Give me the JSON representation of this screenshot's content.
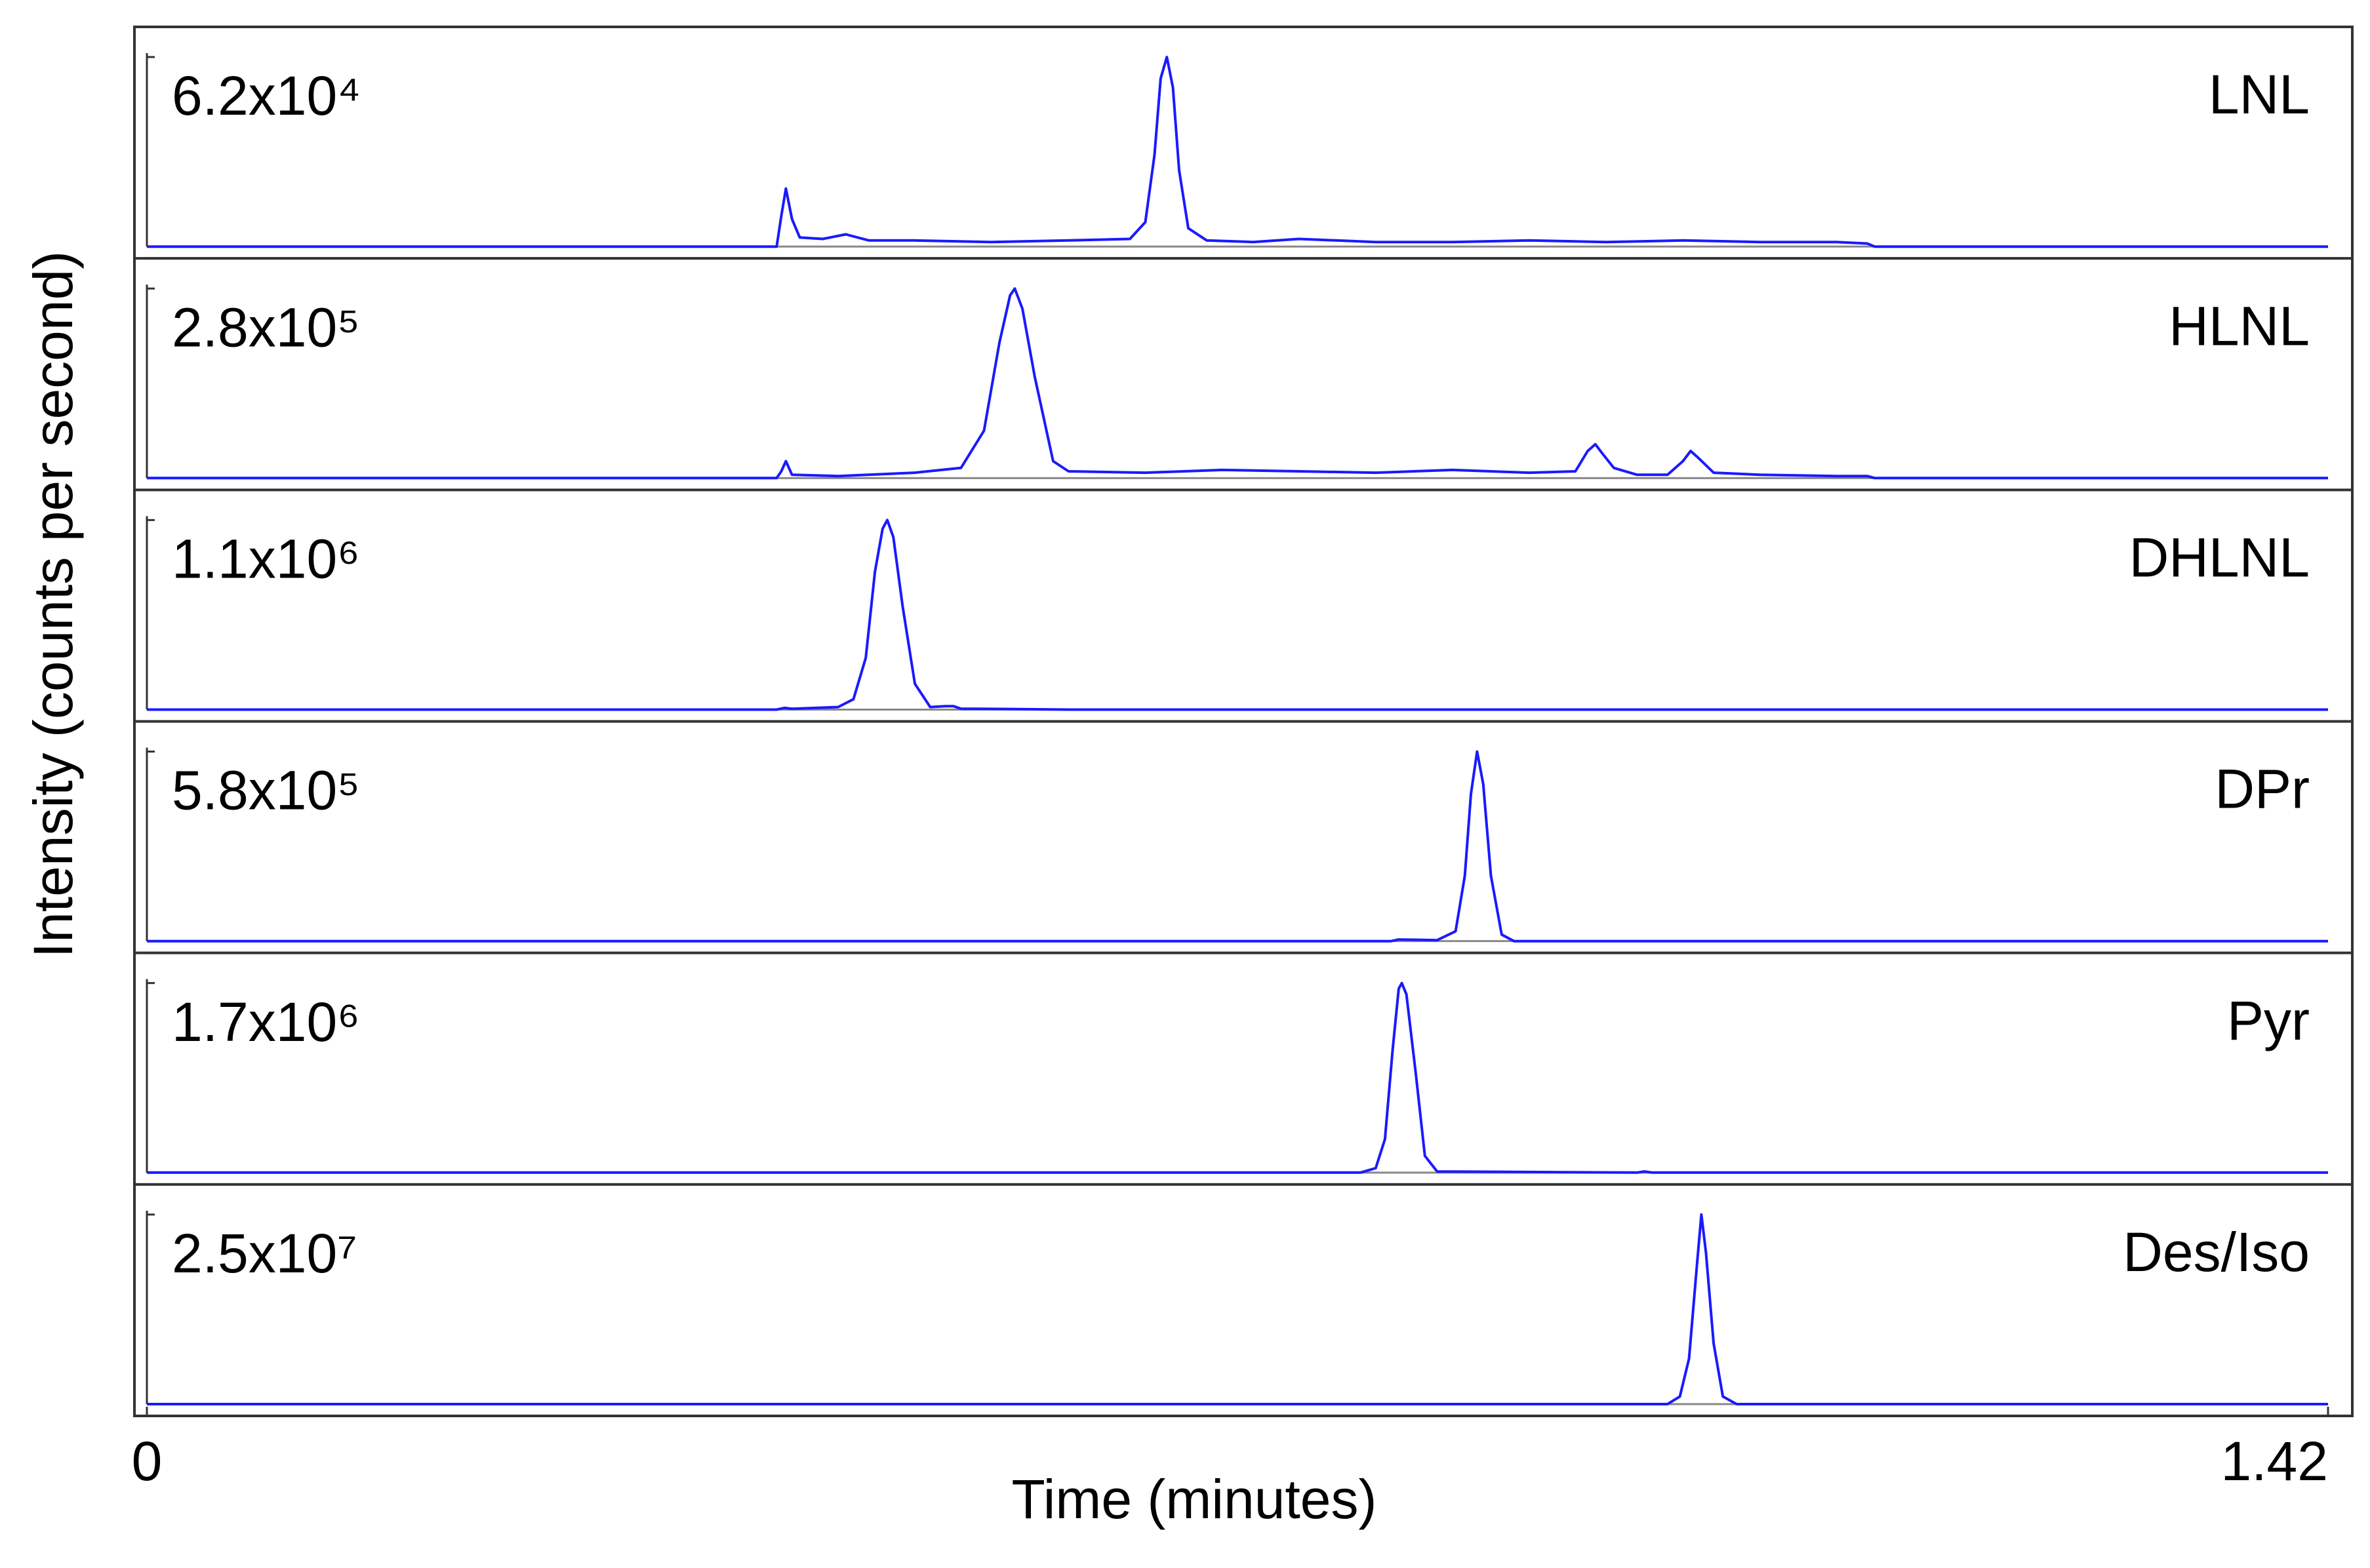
{
  "chart_data": [
    {
      "type": "line",
      "title": "LNL",
      "ylabel": "Intensity (counts per second)",
      "color": "#1a1aff",
      "xlim": [
        0,
        1.42
      ],
      "ylim": [
        0,
        62000
      ],
      "yticks": [
        {
          "value": 62000,
          "label": "6.2x10⁴"
        }
      ],
      "x": [
        0,
        0.41,
        0.413,
        0.416,
        0.42,
        0.425,
        0.44,
        0.455,
        0.47,
        0.5,
        0.55,
        0.6,
        0.64,
        0.65,
        0.656,
        0.66,
        0.664,
        0.668,
        0.672,
        0.678,
        0.69,
        0.72,
        0.75,
        0.8,
        0.85,
        0.9,
        0.95,
        1.0,
        1.05,
        1.1,
        1.12,
        1.125,
        1.42
      ],
      "values": [
        0,
        0,
        10000,
        19000,
        9000,
        3000,
        2500,
        4000,
        2000,
        2000,
        1500,
        2000,
        2500,
        8000,
        30000,
        55000,
        62000,
        52000,
        25000,
        6000,
        2000,
        1500,
        2500,
        1500,
        1500,
        2000,
        1500,
        2000,
        1500,
        1500,
        1000,
        0,
        0
      ]
    },
    {
      "type": "line",
      "title": "HLNL",
      "color": "#1a1aff",
      "xlim": [
        0,
        1.42
      ],
      "ylim": [
        0,
        280000
      ],
      "yticks": [
        {
          "value": 280000,
          "label": "2.8x10⁵"
        }
      ],
      "x": [
        0,
        0.41,
        0.413,
        0.416,
        0.42,
        0.45,
        0.5,
        0.53,
        0.545,
        0.555,
        0.562,
        0.565,
        0.57,
        0.578,
        0.59,
        0.6,
        0.65,
        0.7,
        0.75,
        0.8,
        0.85,
        0.9,
        0.93,
        0.938,
        0.943,
        0.948,
        0.955,
        0.97,
        0.99,
        1.0,
        1.005,
        1.01,
        1.02,
        1.05,
        1.1,
        1.12,
        1.125,
        1.42
      ],
      "values": [
        0,
        0,
        10000,
        25000,
        5000,
        3000,
        8000,
        15000,
        70000,
        200000,
        270000,
        280000,
        250000,
        150000,
        25000,
        10000,
        8000,
        12000,
        10000,
        8000,
        12000,
        8000,
        10000,
        40000,
        50000,
        35000,
        15000,
        5000,
        5000,
        25000,
        40000,
        30000,
        8000,
        5000,
        3000,
        3000,
        0,
        0
      ]
    },
    {
      "type": "line",
      "title": "DHLNL",
      "color": "#1a1aff",
      "xlim": [
        0,
        1.42
      ],
      "ylim": [
        0,
        1100000
      ],
      "yticks": [
        {
          "value": 1100000,
          "label": "1.1x10⁶"
        }
      ],
      "x": [
        0,
        0.41,
        0.415,
        0.42,
        0.45,
        0.46,
        0.468,
        0.474,
        0.479,
        0.482,
        0.486,
        0.492,
        0.5,
        0.51,
        0.52,
        0.525,
        0.53,
        0.54,
        0.6,
        1.42
      ],
      "values": [
        0,
        0,
        10000,
        5000,
        15000,
        60000,
        300000,
        800000,
        1050000,
        1100000,
        1000000,
        600000,
        150000,
        15000,
        20000,
        20000,
        5000,
        5000,
        0,
        0
      ]
    },
    {
      "type": "line",
      "title": "DPr",
      "color": "#1a1aff",
      "xlim": [
        0,
        1.42
      ],
      "ylim": [
        0,
        580000
      ],
      "yticks": [
        {
          "value": 580000,
          "label": "5.8x10⁵"
        }
      ],
      "x": [
        0,
        0.81,
        0.815,
        0.84,
        0.852,
        0.858,
        0.862,
        0.866,
        0.87,
        0.875,
        0.882,
        0.89,
        1.42
      ],
      "values": [
        0,
        0,
        5000,
        3000,
        30000,
        200000,
        450000,
        580000,
        480000,
        200000,
        20000,
        0,
        0
      ]
    },
    {
      "type": "line",
      "title": "Pyr",
      "color": "#1a1aff",
      "xlim": [
        0,
        1.42
      ],
      "ylim": [
        0,
        1700000
      ],
      "yticks": [
        {
          "value": 1700000,
          "label": "1.7x10⁶"
        }
      ],
      "x": [
        0,
        0.79,
        0.8,
        0.806,
        0.811,
        0.815,
        0.817,
        0.82,
        0.826,
        0.832,
        0.84,
        0.97,
        0.975,
        0.98,
        1.42
      ],
      "values": [
        0,
        0,
        40000,
        300000,
        1100000,
        1650000,
        1700000,
        1600000,
        900000,
        150000,
        10000,
        0,
        10000,
        0,
        0
      ]
    },
    {
      "type": "line",
      "title": "Des/Iso",
      "xlabel": "Time (minutes)",
      "color": "#1a1aff",
      "xlim": [
        0,
        1.42
      ],
      "xticks": [
        0,
        1.42
      ],
      "ylim": [
        0,
        25000000
      ],
      "yticks": [
        {
          "value": 25000000,
          "label": "2.5x10⁷"
        }
      ],
      "x": [
        0,
        0.99,
        0.998,
        1.004,
        1.009,
        1.012,
        1.015,
        1.02,
        1.026,
        1.035,
        1.42
      ],
      "values": [
        0,
        0,
        1000000,
        6000000,
        18000000,
        25000000,
        20000000,
        8000000,
        1000000,
        0,
        0
      ]
    }
  ]
}
